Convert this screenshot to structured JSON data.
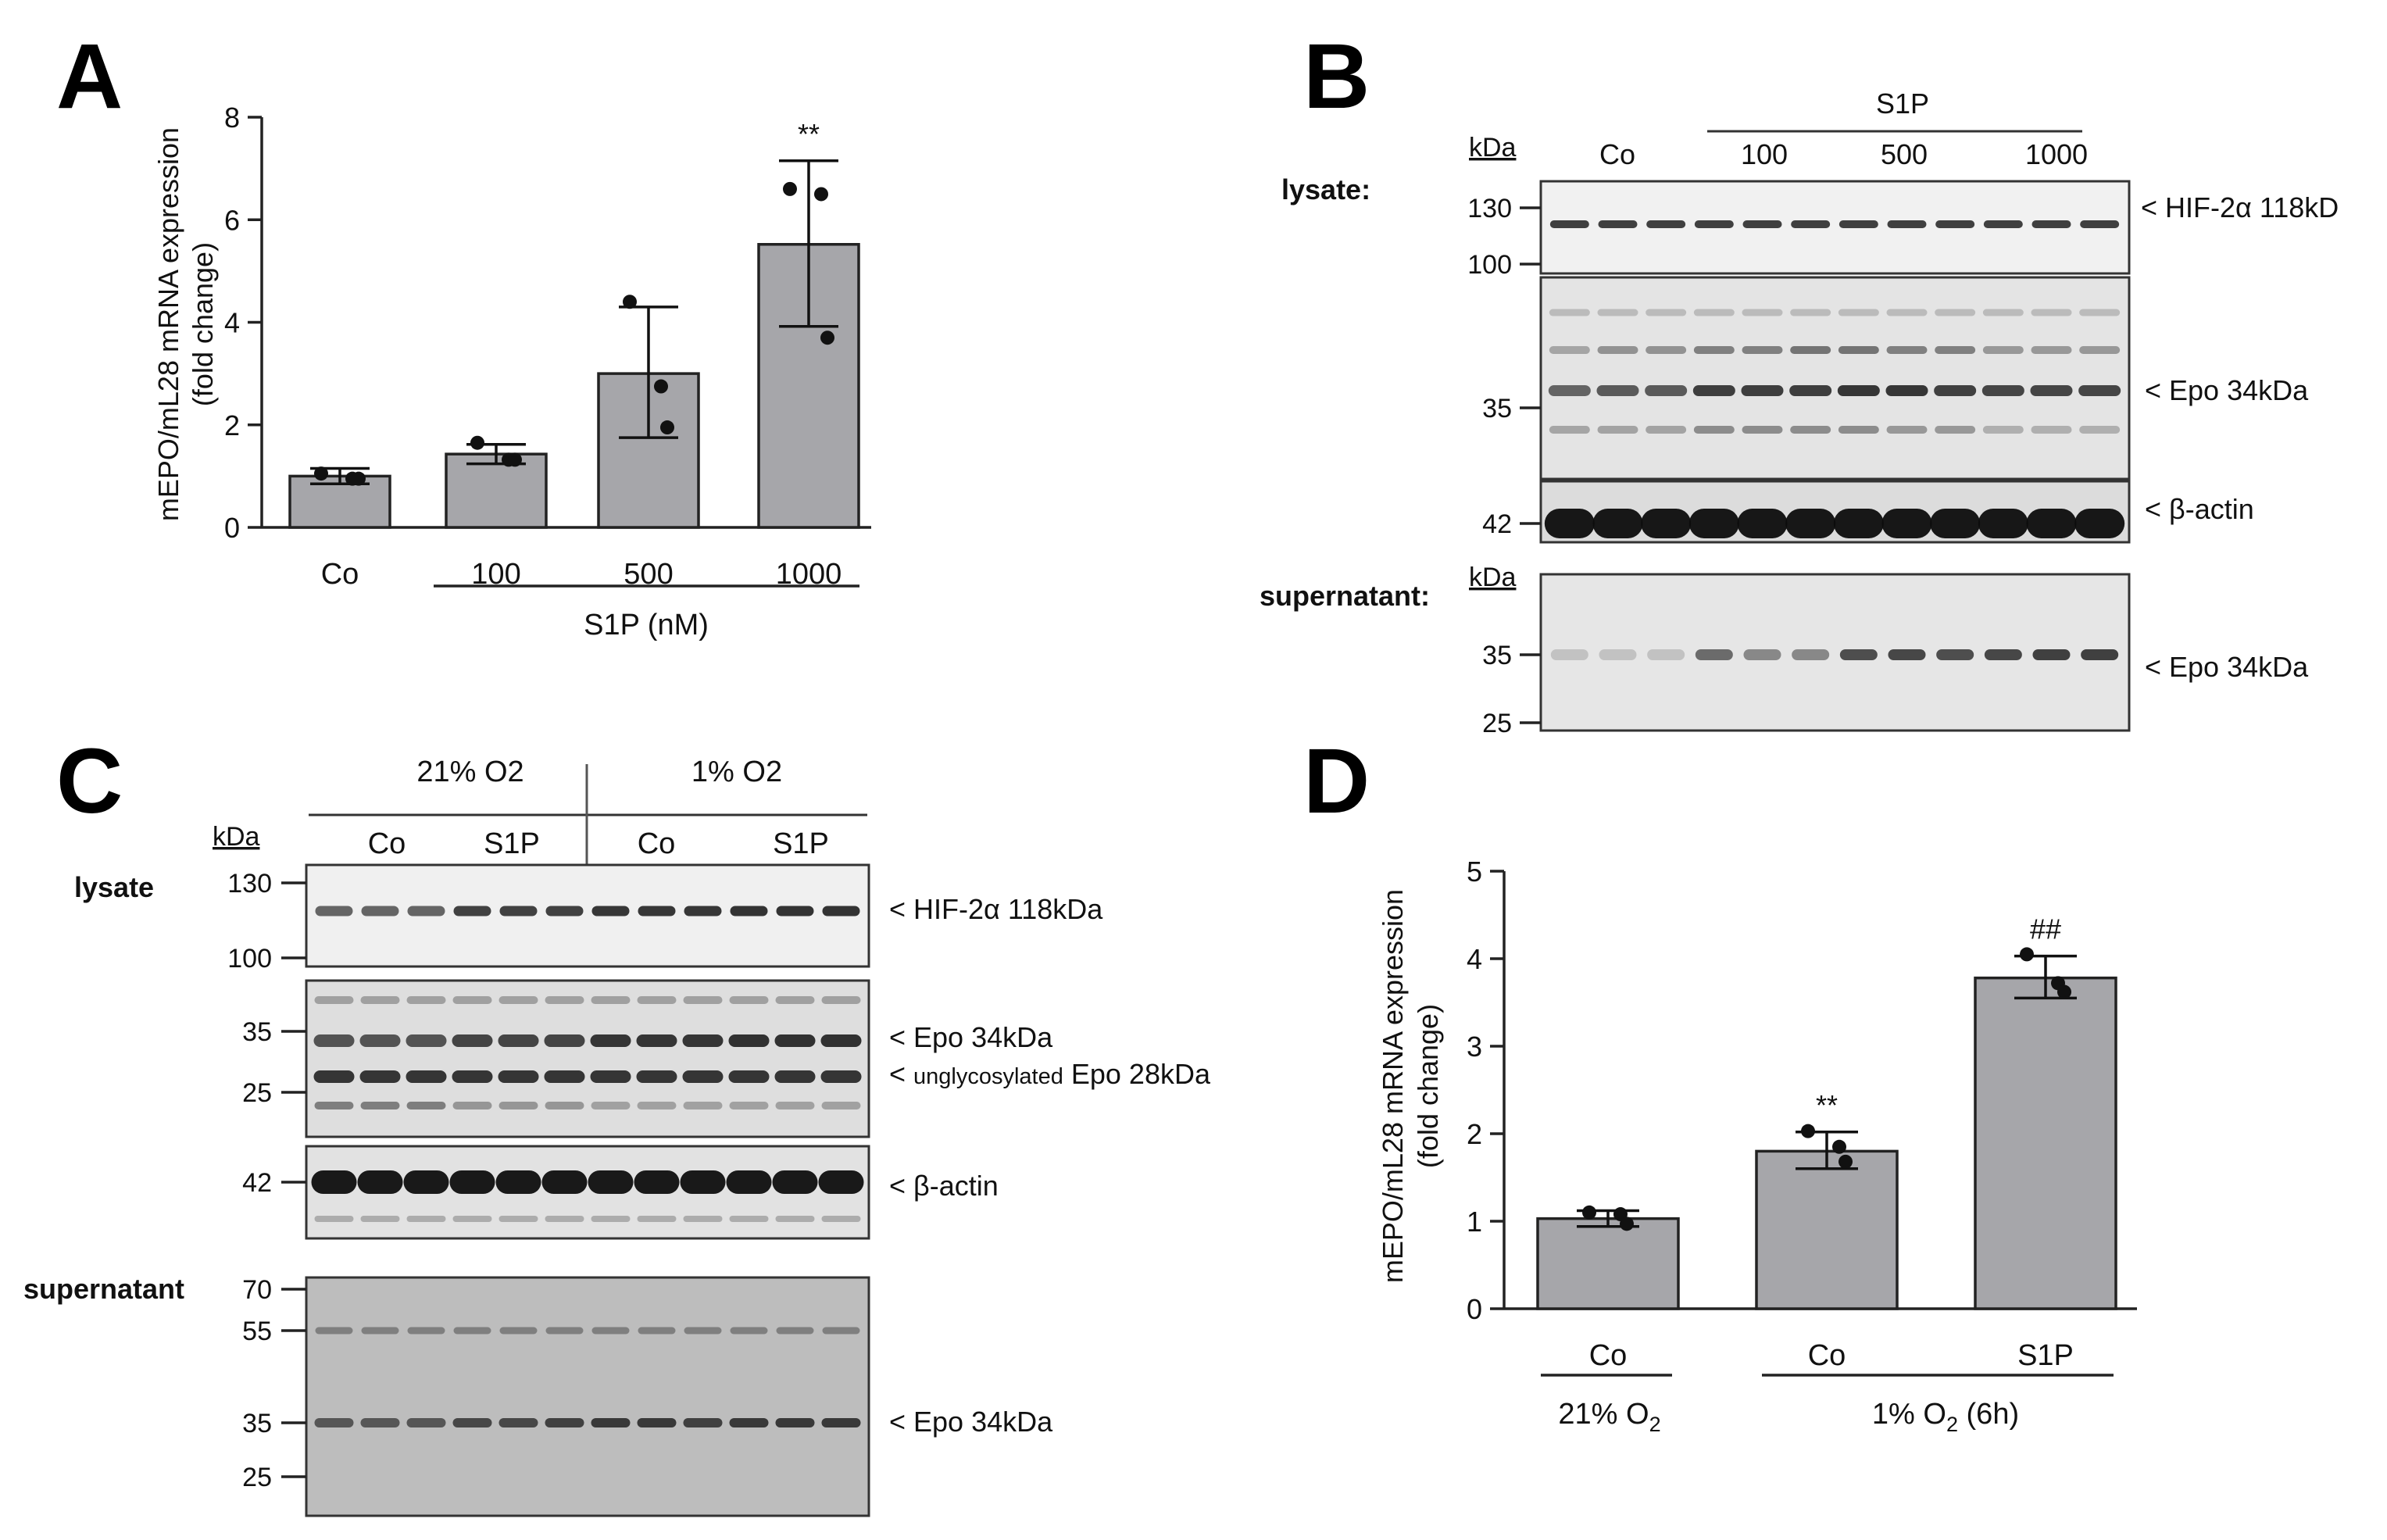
{
  "figure": {
    "panel_letters": [
      "A",
      "B",
      "C",
      "D"
    ]
  },
  "chart_data": [
    {
      "panel": "A",
      "type": "bar",
      "title": "",
      "ylabel_line1": "mEPO/mL28 mRNA expression",
      "ylabel_line2": "(fold change)",
      "xlabel": "S1P (nM)",
      "categories": [
        "Co",
        "100",
        "500",
        "1000"
      ],
      "values": [
        1.0,
        1.43,
        3.0,
        5.52
      ],
      "errors_high": [
        1.15,
        1.62,
        4.3,
        7.15
      ],
      "errors_low": [
        0.85,
        1.24,
        1.75,
        3.92
      ],
      "points": [
        [
          1.05,
          0.95,
          0.95
        ],
        [
          1.65,
          1.32,
          1.32
        ],
        [
          4.4,
          2.75,
          1.95
        ],
        [
          6.6,
          6.5,
          3.7
        ]
      ],
      "annotations": [
        "",
        "",
        "",
        "**"
      ],
      "ylim": [
        0,
        8
      ],
      "yticks": [
        0,
        2,
        4,
        6,
        8
      ],
      "ytick_labels": [
        "0",
        "2",
        "4",
        "6",
        "8"
      ]
    },
    {
      "panel": "D",
      "type": "bar",
      "title": "",
      "ylabel_line1": "mEPO/mL28 mRNA expression",
      "ylabel_line2": "(fold change)",
      "categories": [
        "Co",
        "Co",
        "S1P"
      ],
      "group_labels": [
        "21% O",
        "1% O"
      ],
      "group_label_subscript": "2",
      "group_label_suffix": " (6h)",
      "values": [
        1.03,
        1.8,
        3.78
      ],
      "errors_high": [
        1.12,
        2.02,
        4.03
      ],
      "errors_low": [
        0.94,
        1.6,
        3.55
      ],
      "points": [
        [
          1.1,
          1.08,
          0.97
        ],
        [
          2.03,
          1.85,
          1.68
        ],
        [
          4.05,
          3.72,
          3.62
        ]
      ],
      "annotations": [
        "",
        "**",
        "##"
      ],
      "ylim": [
        0,
        5
      ],
      "yticks": [
        0,
        1,
        2,
        3,
        4,
        5
      ],
      "ytick_labels": [
        "0",
        "1",
        "2",
        "3",
        "4",
        "5"
      ]
    }
  ],
  "blot_b": {
    "kda_label": "kDa",
    "lysate_label": "lysate:",
    "supernatant_label": "supernatant:",
    "treatment_label": "S1P",
    "lane_groups": [
      "Co",
      "100",
      "500",
      "1000"
    ],
    "hif_markers": [
      "130",
      "100"
    ],
    "epo_marker": "35",
    "actin_marker": "42",
    "sup_markers": [
      "35",
      "25"
    ],
    "hif_label": "< HIF-2α 118kD",
    "epo_label": "< Epo 34kDa",
    "actin_label": "< β-actin",
    "sup_epo_label": "< Epo 34kDa"
  },
  "blot_c": {
    "kda_label": "kDa",
    "lysate_label": "lysate",
    "supernatant_label": "supernatant",
    "conditions": [
      "21% O2",
      "1% O2"
    ],
    "lane_groups": [
      "Co",
      "S1P",
      "Co",
      "S1P"
    ],
    "hif_markers": [
      "130",
      "100"
    ],
    "epo_markers": [
      "35",
      "25"
    ],
    "actin_marker": "42",
    "sup_markers": [
      "70",
      "55",
      "35",
      "25"
    ],
    "hif_label": "< HIF-2α  118kDa",
    "epo_label": "< Epo  34kDa",
    "unglyc_prefix": "< ",
    "unglyc_small": "unglycosylated",
    "unglyc_suffix": " Epo  28kDa",
    "actin_label": "< β-actin",
    "sup_epo_label": "< Epo  34kDa"
  }
}
